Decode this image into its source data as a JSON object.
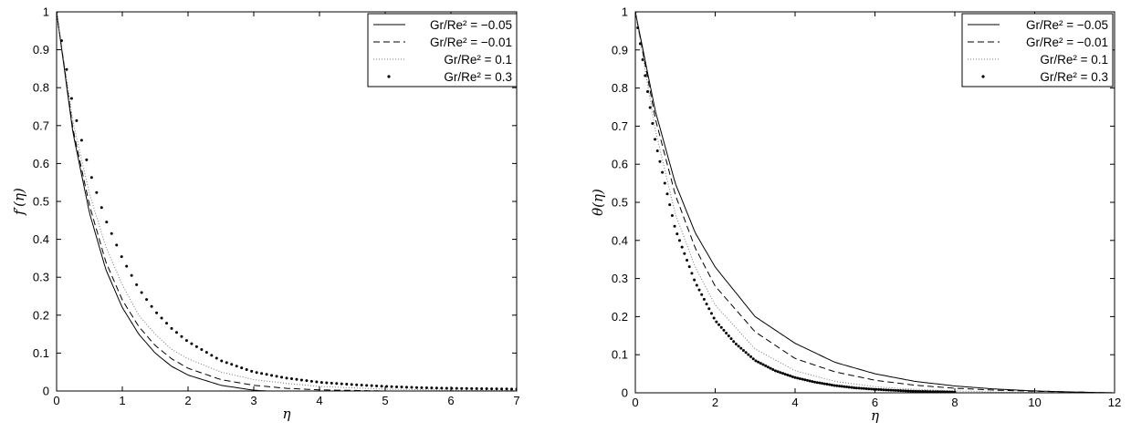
{
  "chart_data": [
    {
      "type": "line",
      "xlabel": "η",
      "ylabel": "f′(η)",
      "xlim": [
        0,
        7
      ],
      "ylim": [
        0,
        1
      ],
      "xticks": [
        "0",
        "1",
        "2",
        "3",
        "4",
        "5",
        "6",
        "7"
      ],
      "yticks": [
        "0",
        "0.1",
        "0.2",
        "0.3",
        "0.4",
        "0.5",
        "0.6",
        "0.7",
        "0.8",
        "0.9",
        "1"
      ],
      "grid": false,
      "legend_position": "top-right",
      "series": [
        {
          "name": "Gr/Re² = −0.05",
          "line_style": "solid",
          "x": [
            0,
            0.25,
            0.5,
            0.75,
            1,
            1.25,
            1.5,
            1.75,
            2,
            2.5,
            3,
            3.5,
            4,
            5,
            6,
            7
          ],
          "y": [
            1,
            0.68,
            0.47,
            0.32,
            0.22,
            0.15,
            0.1,
            0.065,
            0.042,
            0.015,
            0.002,
            -0.003,
            -0.005,
            -0.004,
            -0.002,
            0
          ]
        },
        {
          "name": "Gr/Re² = −0.01",
          "line_style": "dashed",
          "x": [
            0,
            0.25,
            0.5,
            0.75,
            1,
            1.25,
            1.5,
            1.75,
            2,
            2.5,
            3,
            3.5,
            4,
            5,
            6,
            7
          ],
          "y": [
            1,
            0.69,
            0.49,
            0.34,
            0.24,
            0.17,
            0.12,
            0.085,
            0.06,
            0.03,
            0.015,
            0.007,
            0.003,
            0,
            -0.001,
            0
          ]
        },
        {
          "name": "Gr/Re² = 0.1",
          "line_style": "dotted",
          "x": [
            0,
            0.25,
            0.5,
            0.75,
            1,
            1.25,
            1.5,
            1.75,
            2,
            2.5,
            3,
            3.5,
            4,
            5,
            6,
            7
          ],
          "y": [
            1,
            0.71,
            0.52,
            0.38,
            0.28,
            0.2,
            0.15,
            0.11,
            0.085,
            0.05,
            0.03,
            0.02,
            0.012,
            0.005,
            0.002,
            0.001
          ]
        },
        {
          "name": "Gr/Re² = 0.3",
          "line_style": "points",
          "x": [
            0,
            0.25,
            0.5,
            0.75,
            1,
            1.25,
            1.5,
            1.75,
            2,
            2.5,
            3,
            3.5,
            4,
            4.5,
            5,
            5.5,
            6,
            6.5,
            7
          ],
          "y": [
            1,
            0.75,
            0.58,
            0.45,
            0.35,
            0.27,
            0.21,
            0.165,
            0.13,
            0.08,
            0.05,
            0.034,
            0.023,
            0.017,
            0.012,
            0.009,
            0.007,
            0.006,
            0.005
          ]
        }
      ]
    },
    {
      "type": "line",
      "xlabel": "η",
      "ylabel": "θ(η)",
      "xlim": [
        0,
        12
      ],
      "ylim": [
        0,
        1
      ],
      "xticks": [
        "0",
        "2",
        "4",
        "6",
        "8",
        "10",
        "12"
      ],
      "yticks": [
        "0",
        "0.1",
        "0.2",
        "0.3",
        "0.4",
        "0.5",
        "0.6",
        "0.7",
        "0.8",
        "0.9",
        "1"
      ],
      "grid": false,
      "legend_position": "top-right",
      "series": [
        {
          "name": "Gr/Re² = −0.05",
          "line_style": "solid",
          "x": [
            0,
            0.5,
            1,
            1.5,
            2,
            3,
            4,
            5,
            6,
            7,
            8,
            9,
            10,
            11,
            12
          ],
          "y": [
            1,
            0.74,
            0.55,
            0.42,
            0.33,
            0.2,
            0.13,
            0.08,
            0.05,
            0.03,
            0.018,
            0.01,
            0.005,
            0.002,
            0
          ]
        },
        {
          "name": "Gr/Re² = −0.01",
          "line_style": "dashed",
          "x": [
            0,
            0.5,
            1,
            1.5,
            2,
            3,
            4,
            5,
            6,
            7,
            8,
            9,
            10,
            11,
            12
          ],
          "y": [
            1,
            0.72,
            0.52,
            0.38,
            0.28,
            0.16,
            0.09,
            0.055,
            0.033,
            0.02,
            0.012,
            0.007,
            0.004,
            0.002,
            0
          ]
        },
        {
          "name": "Gr/Re² = 0.1",
          "line_style": "dotted",
          "x": [
            0,
            0.5,
            1,
            1.5,
            2,
            3,
            4,
            5,
            6,
            7,
            8,
            9,
            10,
            11,
            12
          ],
          "y": [
            1,
            0.69,
            0.47,
            0.33,
            0.23,
            0.115,
            0.058,
            0.03,
            0.016,
            0.009,
            0.005,
            0.002,
            0.001,
            0,
            0
          ]
        },
        {
          "name": "Gr/Re² = 0.3",
          "line_style": "points",
          "x": [
            0,
            0.5,
            1,
            1.5,
            2,
            2.5,
            3,
            3.5,
            4,
            4.5,
            5,
            5.5,
            6,
            7,
            8,
            9,
            10,
            11,
            12
          ],
          "y": [
            1,
            0.66,
            0.43,
            0.29,
            0.19,
            0.13,
            0.085,
            0.058,
            0.04,
            0.028,
            0.019,
            0.013,
            0.009,
            0.004,
            0.002,
            0.001,
            0,
            0,
            0
          ]
        }
      ]
    }
  ],
  "watermark": "wavy-bracket-mark"
}
